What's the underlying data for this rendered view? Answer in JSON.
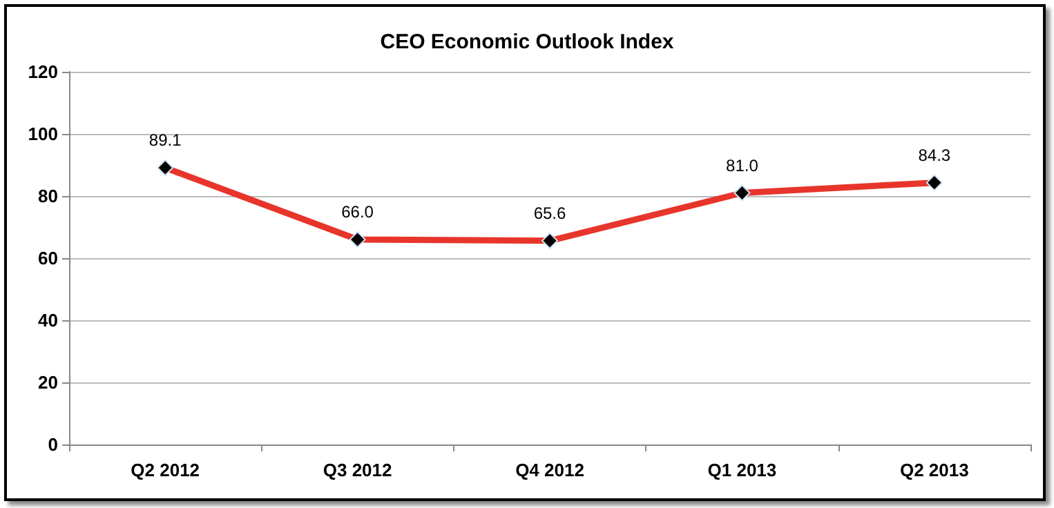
{
  "chart_data": {
    "type": "line",
    "title": "CEO Economic Outlook Index",
    "categories": [
      "Q2 2012",
      "Q3 2012",
      "Q4 2012",
      "Q1 2013",
      "Q2 2013"
    ],
    "series": [
      {
        "color": "#e8352b",
        "values": [
          89.1,
          66.0,
          65.6,
          81.0,
          84.3
        ],
        "value_labels": [
          "89.1",
          "66.0",
          "65.6",
          "81.0",
          "84.3"
        ]
      }
    ],
    "ylim": [
      0,
      120
    ],
    "yticks": [
      0,
      20,
      40,
      60,
      80,
      100,
      120
    ],
    "grid": "y",
    "marker": "diamond",
    "line_style": "solid"
  }
}
